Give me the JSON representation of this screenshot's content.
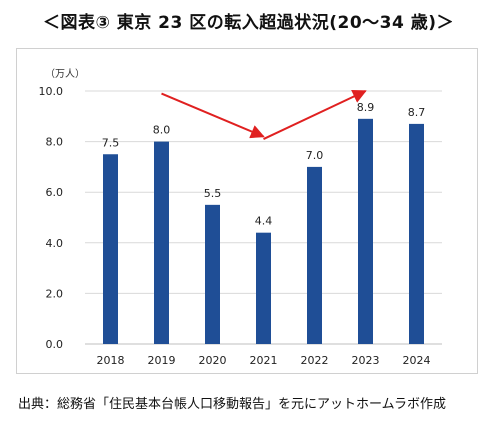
{
  "title": "＜図表③ 東京 23 区の転入超過状況(20～34 歳)＞",
  "source": "出典：総務省「住民基本台帳人口移動報告」を元にアットホームラボ作成",
  "chart_data": {
    "type": "bar",
    "title": "",
    "unit_label": "（万人）",
    "categories": [
      "2018",
      "2019",
      "2020",
      "2021",
      "2022",
      "2023",
      "2024"
    ],
    "values": [
      7.5,
      8.0,
      5.5,
      4.4,
      7.0,
      8.9,
      8.7
    ],
    "value_labels": [
      "7.5",
      "8.0",
      "5.5",
      "4.4",
      "7.0",
      "8.9",
      "8.7"
    ],
    "y_ticks": [
      "0.0",
      "2.0",
      "4.0",
      "6.0",
      "8.0",
      "10.0"
    ],
    "ylim": [
      0,
      10
    ],
    "xlabel": "",
    "ylabel": "",
    "grid": true,
    "bar_color": "#1f4e96",
    "arrow_color": "#e02020",
    "grid_color": "#d9d9d9",
    "annotations": [
      {
        "kind": "arrow",
        "from": {
          "x": "2019",
          "y": 9.9
        },
        "to": {
          "x": "2021",
          "y": 8.2
        }
      },
      {
        "kind": "arrow",
        "from": {
          "x": "2021",
          "y": 8.1
        },
        "to": {
          "x": "2023",
          "y": 10.0
        }
      }
    ]
  }
}
